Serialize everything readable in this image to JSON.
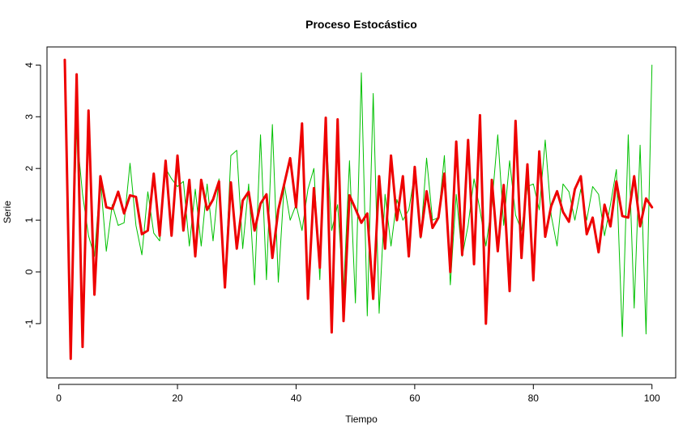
{
  "chart_data": {
    "type": "line",
    "title": "Proceso Estocástico",
    "xlabel": "Tiempo",
    "ylabel": "Serie",
    "xlim": [
      -2,
      104
    ],
    "ylim": [
      -2.05,
      4.35
    ],
    "x_ticks": [
      0,
      20,
      40,
      60,
      80,
      100
    ],
    "y_ticks": [
      -1,
      0,
      1,
      2,
      3,
      4
    ],
    "grid": false,
    "legend": "none",
    "x": [
      1,
      2,
      3,
      4,
      5,
      6,
      7,
      8,
      9,
      10,
      11,
      12,
      13,
      14,
      15,
      16,
      17,
      18,
      19,
      20,
      21,
      22,
      23,
      24,
      25,
      26,
      27,
      28,
      29,
      30,
      31,
      32,
      33,
      34,
      35,
      36,
      37,
      38,
      39,
      40,
      41,
      42,
      43,
      44,
      45,
      46,
      47,
      48,
      49,
      50,
      51,
      52,
      53,
      54,
      55,
      56,
      57,
      58,
      59,
      60,
      61,
      62,
      63,
      64,
      65,
      66,
      67,
      68,
      69,
      70,
      71,
      72,
      73,
      74,
      75,
      76,
      77,
      78,
      79,
      80,
      81,
      82,
      83,
      84,
      85,
      86,
      87,
      88,
      89,
      90,
      91,
      92,
      93,
      94,
      95,
      96,
      97,
      98,
      99,
      100
    ],
    "series": [
      {
        "color": "#00c000",
        "width": 1,
        "values": [
          4.1,
          -1.0,
          2.7,
          1.5,
          0.7,
          0.3,
          1.8,
          0.4,
          1.3,
          0.9,
          0.95,
          2.1,
          0.9,
          0.33,
          1.55,
          0.75,
          0.6,
          2.0,
          1.8,
          1.65,
          1.75,
          0.5,
          1.6,
          0.5,
          1.7,
          0.6,
          1.8,
          -0.25,
          2.25,
          2.35,
          0.45,
          1.7,
          -0.25,
          2.65,
          -0.15,
          2.85,
          -0.2,
          1.7,
          1.0,
          1.3,
          0.8,
          1.6,
          2.0,
          -0.15,
          2.8,
          0.8,
          1.3,
          -0.4,
          2.15,
          -0.6,
          3.85,
          -0.85,
          3.45,
          -0.8,
          1.5,
          0.5,
          1.4,
          1.0,
          1.2,
          1.9,
          0.65,
          2.2,
          1.0,
          1.05,
          2.25,
          -0.25,
          1.5,
          0.3,
          0.9,
          1.8,
          1.2,
          0.5,
          1.3,
          2.65,
          0.9,
          2.15,
          1.1,
          0.8,
          1.65,
          1.7,
          1.2,
          2.55,
          1.1,
          0.5,
          1.7,
          1.55,
          1.0,
          1.6,
          1.0,
          1.65,
          1.5,
          0.7,
          1.3,
          1.98,
          -1.25,
          2.65,
          -0.7,
          2.45,
          -1.2,
          4.0
        ]
      },
      {
        "color": "#ee0000",
        "width": 3,
        "values": [
          4.1,
          -1.68,
          3.82,
          -1.45,
          3.12,
          -0.44,
          1.85,
          1.25,
          1.22,
          1.55,
          1.13,
          1.48,
          1.45,
          0.73,
          0.8,
          1.9,
          0.7,
          2.15,
          0.7,
          2.25,
          0.8,
          1.78,
          0.3,
          1.78,
          1.2,
          1.4,
          1.75,
          -0.3,
          1.73,
          0.45,
          1.38,
          1.55,
          0.8,
          1.32,
          1.5,
          0.27,
          1.2,
          1.7,
          2.2,
          1.25,
          2.87,
          -0.52,
          1.62,
          0.08,
          2.98,
          -1.17,
          2.95,
          -0.95,
          1.48,
          1.22,
          0.95,
          1.13,
          -0.52,
          1.85,
          0.45,
          2.25,
          1.0,
          1.85,
          0.3,
          2.03,
          0.68,
          1.56,
          0.85,
          1.05,
          1.9,
          0.0,
          2.52,
          0.33,
          2.55,
          0.15,
          3.03,
          -1.0,
          1.78,
          0.4,
          1.68,
          -0.37,
          2.92,
          0.27,
          2.08,
          -0.16,
          2.33,
          0.68,
          1.27,
          1.56,
          1.16,
          0.97,
          1.6,
          1.85,
          0.73,
          1.05,
          0.38,
          1.3,
          0.88,
          1.75,
          1.08,
          1.05,
          1.85,
          0.88,
          1.42,
          1.25
        ]
      }
    ]
  }
}
